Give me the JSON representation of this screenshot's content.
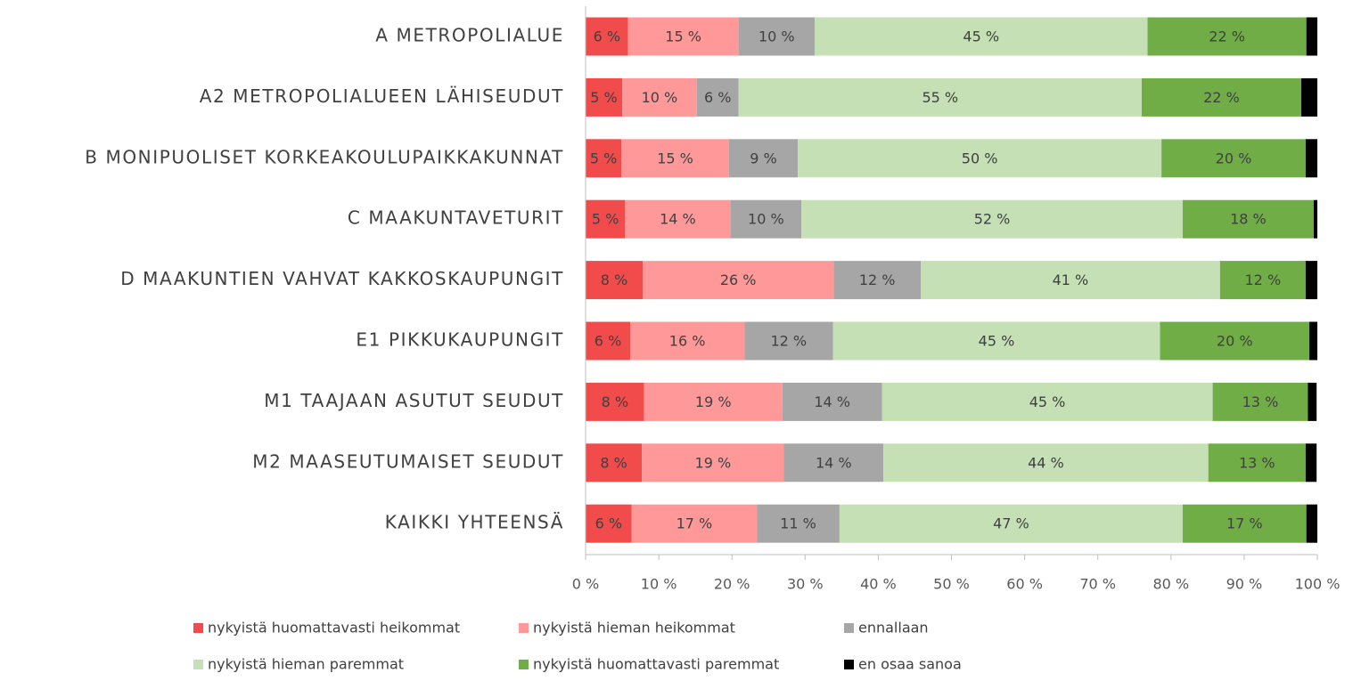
{
  "chart_data": {
    "type": "stacked-bar-horizontal",
    "categories": [
      "A METROPOLIALUE",
      "A2 METROPOLIALUEEN LÄHISEUDUT",
      "B MONIPUOLISET KORKEAKOULUPAIKKAKUNNAT",
      "C MAAKUNTAVETURIT",
      "D MAAKUNTIEN VAHVAT KAKKOSKAUPUNGIT",
      "E1 PIKKUKAUPUNGIT",
      "M1 TAAJAAN ASUTUT SEUDUT",
      "M2 MAASEUTUMAISET SEUDUT",
      "KAIKKI YHTEENSÄ"
    ],
    "series": [
      {
        "name": "nykyistä huomattavasti heikommat",
        "color": "#f24b4b",
        "values": [
          5.8,
          5.0,
          4.9,
          5.4,
          7.8,
          6.1,
          8.0,
          7.7,
          6.3
        ],
        "value_labels": [
          "6 %",
          "5 %",
          "5 %",
          "5 %",
          "8 %",
          "6 %",
          "8 %",
          "8 %",
          "6 %"
        ]
      },
      {
        "name": "nykyistä hieman heikommat",
        "color": "#ff9999",
        "values": [
          15.1,
          10.2,
          14.7,
          14.4,
          26.1,
          15.6,
          18.9,
          19.4,
          17.1
        ],
        "value_labels": [
          "15 %",
          "10 %",
          "15 %",
          "14 %",
          "26 %",
          "16 %",
          "19 %",
          "19 %",
          "17 %"
        ]
      },
      {
        "name": "ennallaan",
        "color": "#a6a6a6",
        "values": [
          10.4,
          5.7,
          9.4,
          9.7,
          11.9,
          12.1,
          13.6,
          13.6,
          11.3
        ],
        "value_labels": [
          "10 %",
          "6 %",
          "9 %",
          "10 %",
          "12 %",
          "12 %",
          "14 %",
          "14 %",
          "11 %"
        ]
      },
      {
        "name": "nykyistä hieman paremmat",
        "color": "#c5e0b4",
        "values": [
          45.5,
          55.1,
          49.7,
          52.1,
          40.9,
          44.7,
          45.2,
          44.4,
          46.9
        ],
        "value_labels": [
          "45 %",
          "55 %",
          "50 %",
          "52 %",
          "41 %",
          "45 %",
          "45 %",
          "44 %",
          "47 %"
        ]
      },
      {
        "name": "nykyistä huomattavasti paremmat",
        "color": "#70ad47",
        "values": [
          21.7,
          21.8,
          19.7,
          17.9,
          11.7,
          20.4,
          13.0,
          13.3,
          16.9
        ],
        "value_labels": [
          "22 %",
          "22 %",
          "20 %",
          "18 %",
          "12 %",
          "20 %",
          "13 %",
          "13 %",
          "17 %"
        ]
      },
      {
        "name": "en osaa sanoa",
        "color": "#000000",
        "values": [
          1.5,
          2.2,
          1.6,
          0.5,
          1.6,
          1.1,
          1.2,
          1.5,
          1.5
        ]
      }
    ],
    "xlim": [
      0,
      100
    ],
    "xticks": [
      {
        "value": 0,
        "label": "0 %"
      },
      {
        "value": 10,
        "label": "10 %"
      },
      {
        "value": 20,
        "label": "20 %"
      },
      {
        "value": 30,
        "label": "30 %"
      },
      {
        "value": 40,
        "label": "40 %"
      },
      {
        "value": 50,
        "label": "50 %"
      },
      {
        "value": 60,
        "label": "60 %"
      },
      {
        "value": 70,
        "label": "70 %"
      },
      {
        "value": 80,
        "label": "80 %"
      },
      {
        "value": 90,
        "label": "90 %"
      },
      {
        "value": 100,
        "label": "100 %"
      }
    ],
    "legend": "bottom"
  }
}
